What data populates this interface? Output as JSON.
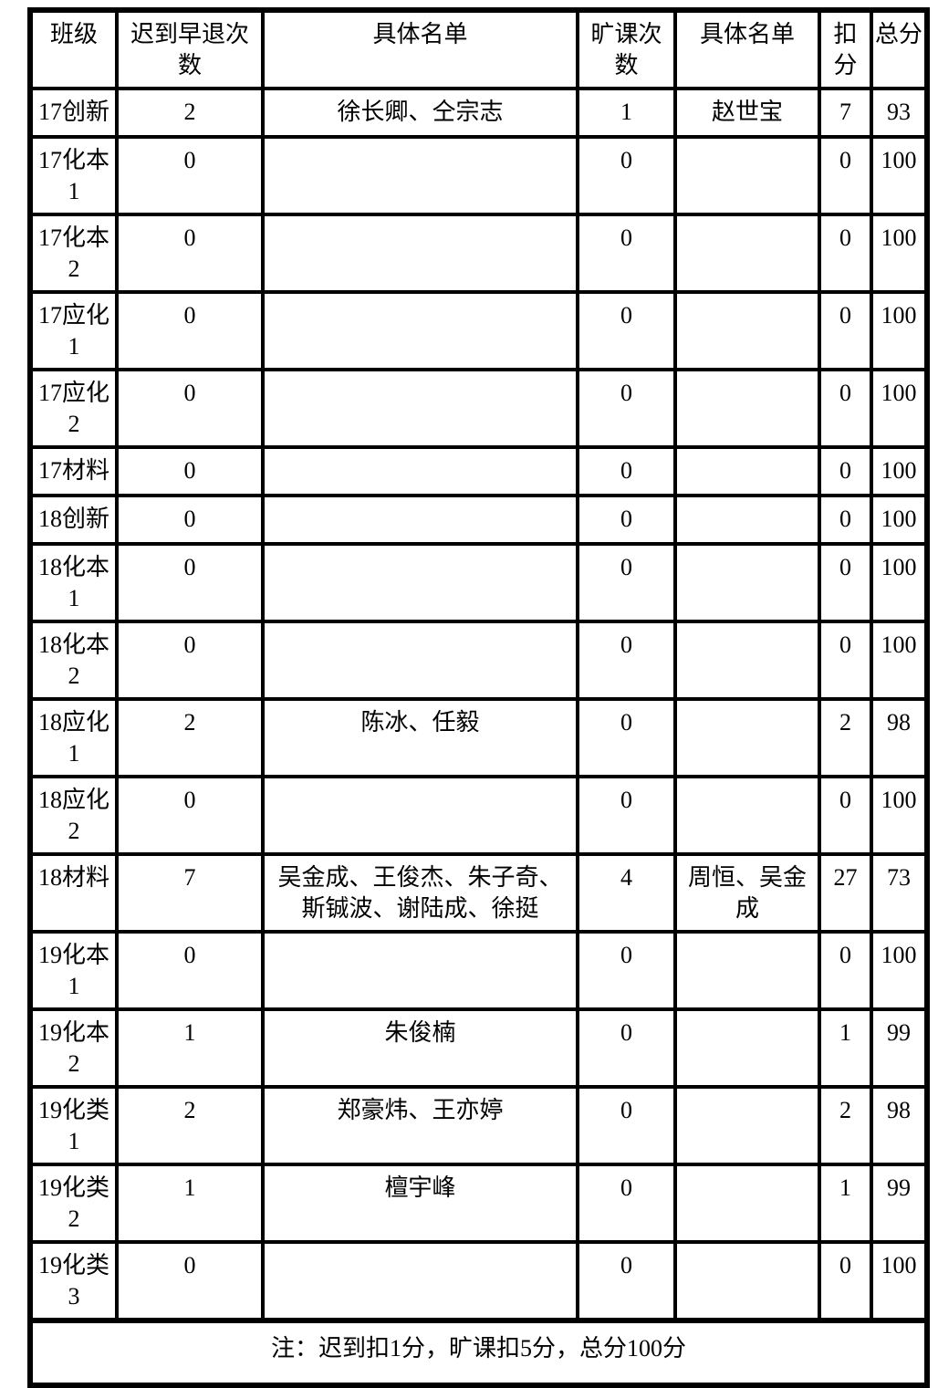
{
  "table": {
    "headers": [
      "班级",
      "迟到早退次数",
      "具体名单",
      "旷课次数",
      "具体名单",
      "扣分",
      "总分"
    ],
    "rows": [
      [
        "17创新",
        "2",
        "徐长卿、仝宗志",
        "1",
        "赵世宝",
        "7",
        "93"
      ],
      [
        "17化本1",
        "0",
        "",
        "0",
        "",
        "0",
        "100"
      ],
      [
        "17化本2",
        "0",
        "",
        "0",
        "",
        "0",
        "100"
      ],
      [
        "17应化1",
        "0",
        "",
        "0",
        "",
        "0",
        "100"
      ],
      [
        "17应化2",
        "0",
        "",
        "0",
        "",
        "0",
        "100"
      ],
      [
        "17材料",
        "0",
        "",
        "0",
        "",
        "0",
        "100"
      ],
      [
        "18创新",
        "0",
        "",
        "0",
        "",
        "0",
        "100"
      ],
      [
        "18化本1",
        "0",
        "",
        "0",
        "",
        "0",
        "100"
      ],
      [
        "18化本2",
        "0",
        "",
        "0",
        "",
        "0",
        "100"
      ],
      [
        "18应化1",
        "2",
        "陈冰、任毅",
        "0",
        "",
        "2",
        "98"
      ],
      [
        "18应化2",
        "0",
        "",
        "0",
        "",
        "0",
        "100"
      ],
      [
        "18材料",
        "7",
        "吴金成、王俊杰、朱子奇、斯铖波、谢陆成、徐挺",
        "4",
        "周恒、吴金成",
        "27",
        "73"
      ],
      [
        "19化本1",
        "0",
        "",
        "0",
        "",
        "0",
        "100"
      ],
      [
        "19化本2",
        "1",
        "朱俊楠",
        "0",
        "",
        "1",
        "99"
      ],
      [
        "19化类1",
        "2",
        "郑豪炜、王亦婷",
        "0",
        "",
        "2",
        "98"
      ],
      [
        "19化类2",
        "1",
        "檀宇峰",
        "0",
        "",
        "1",
        "99"
      ],
      [
        "19化类3",
        "0",
        "",
        "0",
        "",
        "0",
        "100"
      ]
    ],
    "note": "注：迟到扣1分，旷课扣5分，总分100分",
    "colors": {
      "border": "#000000",
      "background": "#ffffff",
      "text": "#000000"
    }
  }
}
